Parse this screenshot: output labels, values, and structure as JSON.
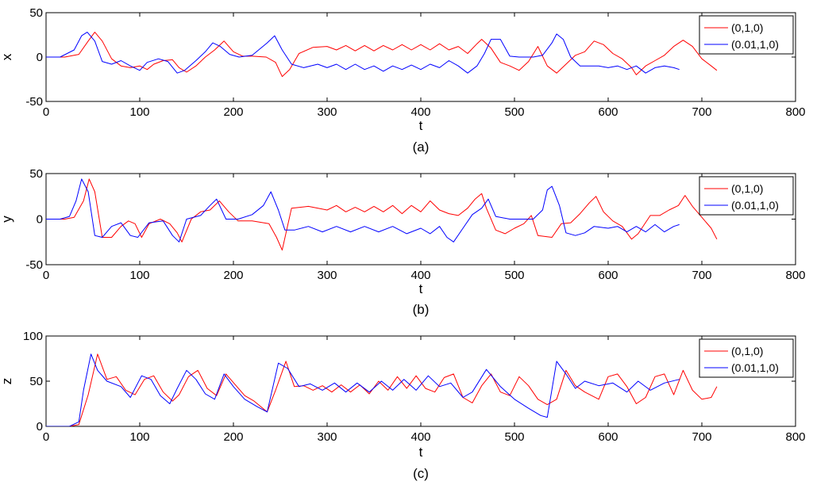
{
  "chart_data": [
    {
      "type": "line",
      "caption": "(a)",
      "xlabel": "t",
      "ylabel": "x",
      "xlim": [
        0,
        800
      ],
      "ylim": [
        -50,
        50
      ],
      "xticks": [
        0,
        100,
        200,
        300,
        400,
        500,
        600,
        700,
        800
      ],
      "yticks": [
        -50,
        0,
        50
      ],
      "grid": false,
      "legend_position": "top-right",
      "series": [
        {
          "name": "(0,1,0)",
          "color": "#ff0000",
          "x": [
            0,
            20,
            35,
            45,
            52,
            60,
            70,
            80,
            90,
            100,
            108,
            115,
            125,
            135,
            142,
            150,
            160,
            170,
            180,
            190,
            200,
            210,
            220,
            235,
            245,
            252,
            260,
            270,
            285,
            300,
            310,
            320,
            330,
            340,
            350,
            360,
            370,
            380,
            390,
            400,
            410,
            420,
            430,
            440,
            450,
            460,
            465,
            475,
            485,
            495,
            505,
            515,
            525,
            535,
            545,
            555,
            565,
            575,
            585,
            595,
            605,
            615,
            625,
            630,
            640,
            650,
            660,
            670,
            680,
            690,
            700,
            710,
            716
          ],
          "y": [
            0,
            0,
            3,
            18,
            28,
            18,
            -2,
            -10,
            -12,
            -10,
            -14,
            -8,
            -4,
            -3,
            -12,
            -17,
            -10,
            0,
            8,
            18,
            6,
            1,
            1,
            0,
            -6,
            -22,
            -14,
            4,
            11,
            12,
            8,
            13,
            7,
            13,
            7,
            13,
            8,
            14,
            8,
            14,
            8,
            15,
            8,
            12,
            4,
            15,
            20,
            10,
            -6,
            -10,
            -15,
            -5,
            12,
            -10,
            -18,
            -8,
            2,
            6,
            18,
            14,
            4,
            -2,
            -12,
            -20,
            -10,
            -4,
            2,
            12,
            19,
            12,
            -2,
            -10,
            -15
          ]
        },
        {
          "name": "(0.01,1,0)",
          "color": "#0000ff",
          "x": [
            0,
            15,
            30,
            38,
            44,
            52,
            60,
            70,
            80,
            90,
            100,
            108,
            120,
            130,
            140,
            148,
            160,
            170,
            178,
            186,
            196,
            206,
            220,
            236,
            244,
            252,
            262,
            275,
            290,
            300,
            310,
            320,
            330,
            340,
            350,
            360,
            370,
            380,
            390,
            400,
            410,
            420,
            430,
            440,
            450,
            460,
            468,
            475,
            485,
            495,
            505,
            520,
            530,
            540,
            545,
            552,
            560,
            570,
            580,
            590,
            600,
            610,
            620,
            630,
            640,
            650,
            660,
            670,
            676
          ],
          "y": [
            0,
            0,
            8,
            24,
            28,
            18,
            -5,
            -8,
            -4,
            -10,
            -15,
            -6,
            -2,
            -5,
            -18,
            -15,
            -4,
            6,
            16,
            12,
            3,
            0,
            2,
            16,
            24,
            8,
            -8,
            -12,
            -8,
            -12,
            -8,
            -14,
            -8,
            -14,
            -10,
            -16,
            -10,
            -14,
            -9,
            -14,
            -8,
            -12,
            -4,
            -10,
            -18,
            -10,
            4,
            20,
            20,
            1,
            0,
            0,
            2,
            16,
            26,
            20,
            0,
            -10,
            -10,
            -10,
            -12,
            -10,
            -14,
            -10,
            -18,
            -12,
            -10,
            -12,
            -14
          ]
        }
      ]
    },
    {
      "type": "line",
      "caption": "(b)",
      "xlabel": "t",
      "ylabel": "y",
      "xlim": [
        0,
        800
      ],
      "ylim": [
        -50,
        50
      ],
      "xticks": [
        0,
        100,
        200,
        300,
        400,
        500,
        600,
        700,
        800
      ],
      "yticks": [
        -50,
        0,
        50
      ],
      "grid": false,
      "legend_position": "top-right",
      "series": [
        {
          "name": "(0,1,0)",
          "color": "#ff0000",
          "x": [
            0,
            20,
            30,
            40,
            46,
            52,
            60,
            70,
            80,
            88,
            95,
            102,
            110,
            122,
            132,
            140,
            145,
            155,
            165,
            175,
            185,
            195,
            205,
            220,
            238,
            246,
            252,
            262,
            280,
            300,
            310,
            320,
            330,
            340,
            350,
            360,
            370,
            380,
            390,
            400,
            410,
            420,
            430,
            440,
            450,
            458,
            465,
            470,
            480,
            490,
            500,
            510,
            518,
            525,
            540,
            550,
            560,
            570,
            580,
            587,
            595,
            605,
            615,
            625,
            632,
            645,
            655,
            665,
            675,
            682,
            690,
            700,
            710,
            716
          ],
          "y": [
            0,
            0,
            2,
            20,
            44,
            30,
            -20,
            -20,
            -8,
            -2,
            -5,
            -20,
            -5,
            0,
            -5,
            -15,
            -25,
            0,
            8,
            10,
            20,
            8,
            -2,
            -2,
            -5,
            -20,
            -34,
            12,
            14,
            10,
            15,
            8,
            13,
            8,
            14,
            8,
            15,
            6,
            15,
            8,
            20,
            10,
            6,
            4,
            12,
            22,
            28,
            12,
            -12,
            -16,
            -10,
            -5,
            4,
            -18,
            -20,
            -5,
            -4,
            6,
            18,
            25,
            8,
            -2,
            -8,
            -22,
            -16,
            4,
            4,
            10,
            15,
            26,
            14,
            2,
            -10,
            -22
          ]
        },
        {
          "name": "(0.01,1,0)",
          "color": "#0000ff",
          "x": [
            0,
            15,
            25,
            32,
            38,
            45,
            52,
            60,
            70,
            80,
            90,
            98,
            110,
            125,
            135,
            142,
            150,
            165,
            175,
            182,
            192,
            205,
            220,
            232,
            240,
            248,
            255,
            265,
            280,
            295,
            310,
            325,
            340,
            355,
            370,
            385,
            400,
            410,
            420,
            428,
            435,
            445,
            455,
            465,
            472,
            480,
            495,
            510,
            520,
            530,
            535,
            540,
            548,
            555,
            565,
            575,
            585,
            600,
            610,
            620,
            630,
            640,
            650,
            660,
            670,
            676
          ],
          "y": [
            0,
            0,
            3,
            20,
            44,
            30,
            -18,
            -20,
            -8,
            -4,
            -18,
            -20,
            -4,
            -2,
            -18,
            -25,
            0,
            4,
            15,
            22,
            0,
            0,
            5,
            15,
            30,
            10,
            -12,
            -12,
            -8,
            -14,
            -8,
            -14,
            -8,
            -14,
            -8,
            -16,
            -10,
            -16,
            -8,
            -20,
            -25,
            -10,
            5,
            12,
            22,
            3,
            0,
            0,
            0,
            10,
            32,
            36,
            15,
            -15,
            -18,
            -15,
            -8,
            -10,
            -8,
            -14,
            -8,
            -14,
            -6,
            -14,
            -8,
            -6
          ]
        }
      ]
    },
    {
      "type": "line",
      "caption": "(c)",
      "xlabel": "t",
      "ylabel": "z",
      "xlim": [
        0,
        800
      ],
      "ylim": [
        0,
        100
      ],
      "xticks": [
        0,
        100,
        200,
        300,
        400,
        500,
        600,
        700,
        800
      ],
      "yticks": [
        0,
        50,
        100
      ],
      "grid": false,
      "legend_position": "top-right",
      "series": [
        {
          "name": "(0,1,0)",
          "color": "#ff0000",
          "x": [
            0,
            25,
            35,
            45,
            55,
            65,
            75,
            85,
            95,
            105,
            115,
            125,
            135,
            142,
            152,
            162,
            172,
            182,
            192,
            202,
            212,
            222,
            236,
            245,
            256,
            265,
            275,
            285,
            295,
            305,
            315,
            325,
            335,
            345,
            355,
            365,
            375,
            385,
            395,
            405,
            415,
            425,
            435,
            445,
            455,
            465,
            475,
            485,
            495,
            505,
            515,
            525,
            535,
            545,
            555,
            565,
            575,
            590,
            600,
            610,
            620,
            630,
            640,
            650,
            660,
            670,
            680,
            690,
            700,
            710,
            716
          ],
          "y": [
            0,
            0,
            2,
            35,
            80,
            52,
            55,
            40,
            35,
            52,
            56,
            38,
            28,
            35,
            55,
            62,
            42,
            34,
            58,
            46,
            34,
            28,
            16,
            40,
            72,
            44,
            45,
            40,
            45,
            38,
            46,
            38,
            46,
            36,
            50,
            40,
            55,
            42,
            56,
            42,
            38,
            54,
            58,
            32,
            26,
            45,
            58,
            38,
            34,
            55,
            45,
            30,
            24,
            30,
            62,
            45,
            38,
            30,
            55,
            58,
            44,
            25,
            32,
            55,
            58,
            35,
            62,
            40,
            30,
            32,
            44
          ]
        },
        {
          "name": "(0.01,1,0)",
          "color": "#0000ff",
          "x": [
            0,
            25,
            35,
            40,
            48,
            55,
            65,
            80,
            90,
            102,
            112,
            122,
            132,
            140,
            150,
            160,
            170,
            180,
            190,
            200,
            212,
            225,
            236,
            248,
            258,
            270,
            282,
            295,
            308,
            320,
            332,
            345,
            358,
            370,
            382,
            395,
            408,
            420,
            432,
            445,
            455,
            470,
            485,
            500,
            515,
            528,
            535,
            545,
            555,
            565,
            575,
            590,
            605,
            620,
            632,
            645,
            660,
            676
          ],
          "y": [
            0,
            0,
            5,
            40,
            80,
            62,
            50,
            44,
            32,
            56,
            52,
            34,
            25,
            42,
            62,
            52,
            36,
            30,
            58,
            44,
            30,
            22,
            16,
            70,
            64,
            44,
            47,
            40,
            48,
            38,
            48,
            38,
            50,
            40,
            52,
            40,
            56,
            44,
            48,
            32,
            38,
            63,
            44,
            30,
            20,
            12,
            10,
            72,
            58,
            42,
            50,
            45,
            48,
            38,
            50,
            40,
            48,
            52
          ]
        }
      ]
    }
  ]
}
